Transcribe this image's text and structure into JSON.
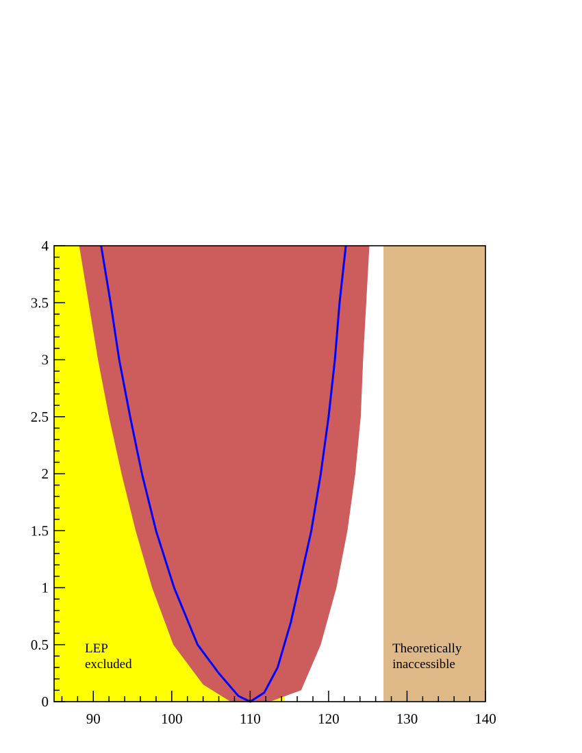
{
  "chart_data": {
    "type": "line",
    "title": "",
    "xlabel": "",
    "ylabel": "",
    "xlim": [
      85,
      140
    ],
    "ylim": [
      0,
      4
    ],
    "x_ticks": [
      "90",
      "100",
      "110",
      "120",
      "130",
      "140"
    ],
    "y_ticks": [
      "0",
      "0.5",
      "1",
      "1.5",
      "2",
      "2.5",
      "3",
      "3.5",
      "4"
    ],
    "regions": [
      {
        "label_lines": [
          "LEP",
          "excluded"
        ],
        "x_range": [
          85,
          114.4
        ],
        "color": "#ffff00"
      },
      {
        "label_lines": [
          "Theoretically",
          "inaccessible"
        ],
        "x_range": [
          127,
          140
        ],
        "color": "#deb887"
      }
    ],
    "band": {
      "color": "#cd5c5c",
      "left_edge": [
        {
          "x": 88.2,
          "y": 4
        },
        {
          "x": 89.4,
          "y": 3.5
        },
        {
          "x": 90.6,
          "y": 3
        },
        {
          "x": 92.0,
          "y": 2.5
        },
        {
          "x": 93.6,
          "y": 2
        },
        {
          "x": 95.4,
          "y": 1.5
        },
        {
          "x": 97.5,
          "y": 1
        },
        {
          "x": 100.2,
          "y": 0.5
        },
        {
          "x": 104.0,
          "y": 0.15
        },
        {
          "x": 107.5,
          "y": 0
        }
      ],
      "right_edge": [
        {
          "x": 125.2,
          "y": 4
        },
        {
          "x": 124.8,
          "y": 3.5
        },
        {
          "x": 124.4,
          "y": 3
        },
        {
          "x": 124.1,
          "y": 2.5
        },
        {
          "x": 123.4,
          "y": 2
        },
        {
          "x": 122.4,
          "y": 1.5
        },
        {
          "x": 121.0,
          "y": 1
        },
        {
          "x": 119.0,
          "y": 0.5
        },
        {
          "x": 116.5,
          "y": 0.1
        },
        {
          "x": 112.5,
          "y": 0
        }
      ]
    },
    "series": [
      {
        "color": "#0000ff",
        "points": [
          {
            "x": 91.0,
            "y": 4
          },
          {
            "x": 92.2,
            "y": 3.5
          },
          {
            "x": 93.3,
            "y": 3
          },
          {
            "x": 94.7,
            "y": 2.5
          },
          {
            "x": 96.2,
            "y": 2
          },
          {
            "x": 98.0,
            "y": 1.5
          },
          {
            "x": 100.3,
            "y": 1
          },
          {
            "x": 103.3,
            "y": 0.5
          },
          {
            "x": 106.0,
            "y": 0.25
          },
          {
            "x": 108.5,
            "y": 0.05
          },
          {
            "x": 110.0,
            "y": 0
          },
          {
            "x": 111.8,
            "y": 0.08
          },
          {
            "x": 113.5,
            "y": 0.3
          },
          {
            "x": 115.2,
            "y": 0.7
          },
          {
            "x": 116.5,
            "y": 1.1
          },
          {
            "x": 117.8,
            "y": 1.5
          },
          {
            "x": 119.0,
            "y": 2
          },
          {
            "x": 120.0,
            "y": 2.5
          },
          {
            "x": 120.8,
            "y": 3
          },
          {
            "x": 121.4,
            "y": 3.5
          },
          {
            "x": 122.2,
            "y": 4
          }
        ]
      }
    ]
  }
}
